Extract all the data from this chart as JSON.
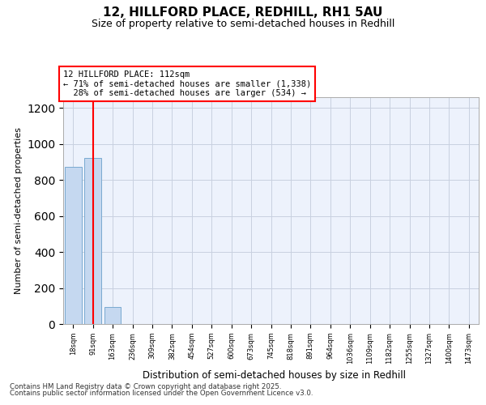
{
  "title1": "12, HILLFORD PLACE, REDHILL, RH1 5AU",
  "title2": "Size of property relative to semi-detached houses in Redhill",
  "xlabel": "Distribution of semi-detached houses by size in Redhill",
  "ylabel": "Number of semi-detached properties",
  "bar_labels": [
    "18sqm",
    "91sqm",
    "163sqm",
    "236sqm",
    "309sqm",
    "382sqm",
    "454sqm",
    "527sqm",
    "600sqm",
    "673sqm",
    "745sqm",
    "818sqm",
    "891sqm",
    "964sqm",
    "1036sqm",
    "1109sqm",
    "1182sqm",
    "1255sqm",
    "1327sqm",
    "1400sqm",
    "1473sqm"
  ],
  "bar_values": [
    873,
    924,
    95,
    0,
    0,
    0,
    0,
    0,
    0,
    0,
    0,
    0,
    0,
    0,
    0,
    0,
    0,
    0,
    0,
    0,
    0
  ],
  "bar_color": "#c5d8f0",
  "bar_edge_color": "#7aaad0",
  "property_line_x": 1.0,
  "property_size": "112sqm",
  "pct_smaller": 71,
  "n_smaller": 1338,
  "pct_larger": 28,
  "n_larger": 534,
  "ylim": [
    0,
    1260
  ],
  "yticks": [
    0,
    200,
    400,
    600,
    800,
    1000,
    1200
  ],
  "grid_color": "#c8d0e0",
  "bg_color": "#edf2fc",
  "footer1": "Contains HM Land Registry data © Crown copyright and database right 2025.",
  "footer2": "Contains public sector information licensed under the Open Government Licence v3.0."
}
